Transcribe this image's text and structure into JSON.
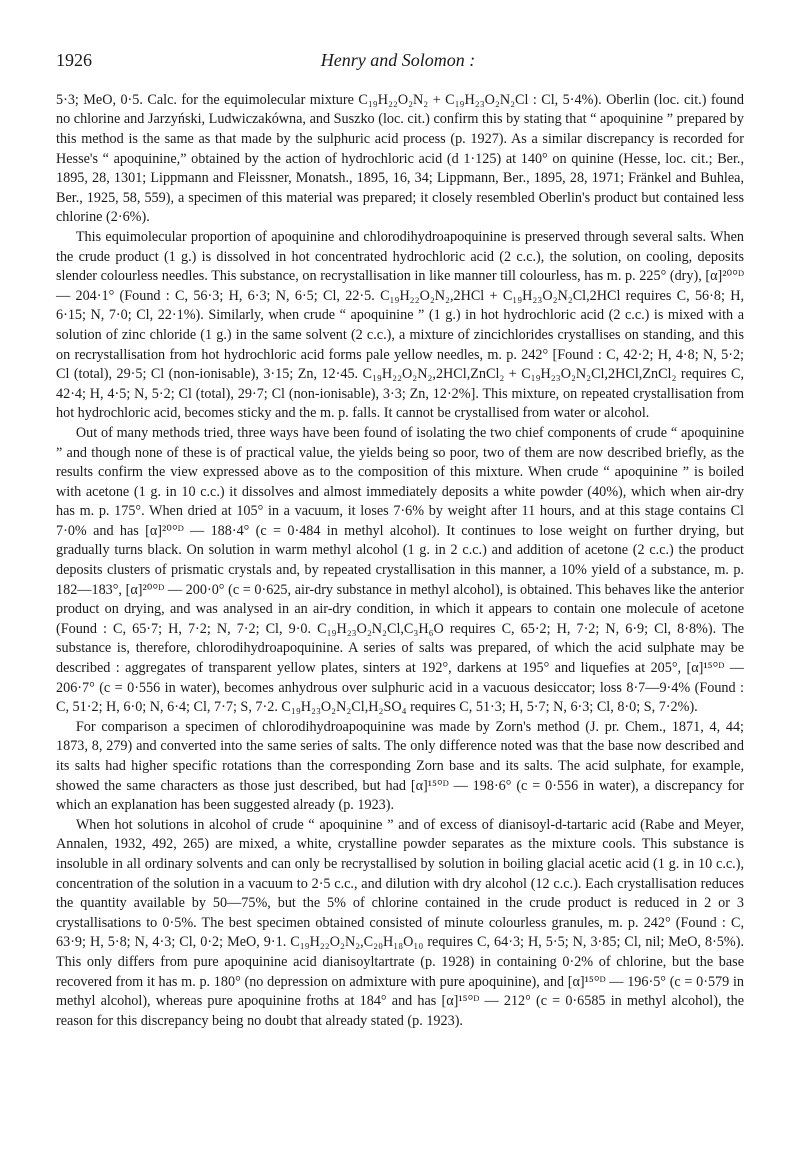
{
  "header": {
    "page_number": "1926",
    "running_title": "Henry and Solomon :"
  },
  "paragraphs": [
    {
      "indent": false,
      "text": "5·3;  MeO, 0·5.   Calc. for the equimolecular mixture C₁₉H₂₂O₂N₂ + C₁₉H₂₃O₂N₂Cl :  Cl, 5·4%). Oberlin (loc. cit.) found no chlorine and Jarzyński, Ludwiczakówna, and Suszko (loc. cit.) confirm this by stating that “ apoquinine ” prepared by this method is the same as that made by the sulphuric acid process (p. 1927).  As a similar discrepancy is recorded for Hesse's “ apoquinine,” obtained by the action of hydrochloric acid (d 1·125) at 140° on quinine (Hesse, loc. cit.; Ber., 1895, 28, 1301; Lippmann and Fleissner, Monatsh., 1895, 16, 34; Lippmann, Ber., 1895, 28, 1971; Fränkel and Buhlea, Ber., 1925, 58, 559), a specimen of this material was prepared; it closely resembled Oberlin's product but contained less chlorine (2·6%)."
    },
    {
      "indent": true,
      "text": "This equimolecular proportion of apoquinine and chlorodihydroapoquinine is preserved through several salts.  When the crude product (1 g.) is dissolved in hot concentrated hydrochloric acid (2 c.c.), the solution, on cooling, deposits slender colourless needles.  This substance, on recrystallisation in like manner till colourless, has m. p. 225° (dry), [α]²⁰°ᴰ — 204·1° (Found : C, 56·3;  H, 6·3;  N, 6·5;  Cl, 22·5.   C₁₉H₂₂O₂N₂,2HCl + C₁₉H₂₃O₂N₂Cl,2HCl requires C, 56·8; H, 6·15; N, 7·0; Cl, 22·1%).  Similarly, when crude “ apoquinine ” (1 g.) in hot hydrochloric acid (2 c.c.) is mixed with a solution of zinc chloride (1 g.) in the same solvent (2 c.c.), a mixture of zincichlorides crystallises on standing, and this on recrystallisation from hot hydrochloric acid forms pale yellow needles, m. p. 242° [Found : C, 42·2; H, 4·8; N, 5·2; Cl (total), 29·5; Cl (non-ionisable), 3·15; Zn, 12·45.  C₁₉H₂₂O₂N₂,2HCl,ZnCl₂ + C₁₉H₂₃O₂N₂Cl,2HCl,ZnCl₂ requires C, 42·4; H, 4·5; N, 5·2; Cl (total), 29·7; Cl (non-ionisable), 3·3; Zn, 12·2%].  This mixture, on repeated crystallisation from hot hydrochloric acid, becomes sticky and the m. p. falls.  It cannot be crystallised from water or alcohol."
    },
    {
      "indent": true,
      "text": "Out of many methods tried, three ways have been found of isolating the two chief components of crude “ apoquinine ” and though none of these is of practical value, the yields being so poor, two of them are now described briefly, as the results confirm the view expressed above as to the composition of this mixture.  When crude “ apoquinine ” is boiled with acetone (1 g. in 10 c.c.) it dissolves and almost immediately deposits a white powder (40%), which when air-dry has m. p. 175°.  When dried at 105° in a vacuum, it loses 7·6% by weight after 11 hours, and at this stage contains Cl 7·0% and has [α]²⁰°ᴰ — 188·4° (c = 0·484 in methyl alcohol).  It continues to lose weight on further drying, but gradually turns black.  On solution in warm methyl alcohol (1 g. in 2 c.c.) and addition of acetone (2 c.c.) the product deposits clusters of prismatic crystals and, by repeated crystallisation in this manner, a 10% yield of a substance, m. p. 182—183°, [α]²⁰°ᴰ — 200·0° (c = 0·625, air-dry substance in methyl alcohol), is obtained.  This behaves like the anterior product on drying, and was analysed in an air-dry condition, in which it appears to contain one molecule of acetone (Found : C, 65·7; H, 7·2; N, 7·2; Cl, 9·0. C₁₉H₂₃O₂N₂Cl,C₃H₆O requires C, 65·2; H, 7·2; N, 6·9; Cl, 8·8%).  The substance is, therefore, chlorodihydroapoquinine.  A series of salts was prepared, of which the acid sulphate may be described : aggregates of transparent yellow plates, sinters at 192°, darkens at 195° and liquefies at 205°, [α]¹⁵°ᴰ — 206·7° (c = 0·556 in water), becomes anhydrous over sulphuric acid in a vacuous desiccator; loss 8·7—9·4% (Found : C, 51·2; H, 6·0; N, 6·4; Cl, 7·7; S, 7·2. C₁₉H₂₃O₂N₂Cl,H₂SO₄ requires C, 51·3; H, 5·7; N, 6·3; Cl, 8·0; S, 7·2%)."
    },
    {
      "indent": true,
      "text": "For comparison a specimen of chlorodihydroapoquinine was made by Zorn's method (J. pr. Chem., 1871, 4, 44; 1873, 8, 279) and converted into the same series of salts.  The only difference noted was that the base now described and its salts had higher specific rotations than the corresponding Zorn base and its salts.  The acid sulphate, for example, showed the same characters as those just described, but had [α]¹⁵°ᴰ — 198·6° (c = 0·556 in water), a discrepancy for which an explanation has been suggested already (p. 1923)."
    },
    {
      "indent": true,
      "text": "When hot solutions in alcohol of crude “ apoquinine ” and of excess of dianisoyl-d-tartaric acid (Rabe and Meyer, Annalen, 1932, 492, 265) are mixed, a white, crystalline powder separates as the mixture cools.  This substance is insoluble in all ordinary solvents and can only be recrystallised by solution in boiling glacial acetic acid (1 g. in 10 c.c.), concentration of the solution in a vacuum to 2·5 c.c., and dilution with dry alcohol (12 c.c.).  Each crystallisation reduces the quantity available by 50—75%, but the 5% of chlorine contained in the crude product is reduced in 2 or 3 crystallisations to 0·5%.  The best specimen obtained consisted of minute colourless granules, m. p. 242° (Found : C, 63·9; H, 5·8; N, 4·3; Cl, 0·2; MeO, 9·1. C₁₉H₂₂O₂N₂,C₂₀H₁₈O₁₀ requires C, 64·3; H, 5·5; N, 3·85; Cl, nil; MeO, 8·5%).  This only differs from pure apoquinine acid dianisoyltartrate (p. 1928) in containing 0·2% of chlorine, but the base recovered from it has m. p. 180° (no depression on admixture with pure apoquinine), and [α]¹⁵°ᴰ — 196·5° (c = 0·579 in methyl alcohol), whereas pure apoquinine froths at 184° and has [α]¹⁵°ᴰ — 212° (c = 0·6585 in methyl alcohol), the reason for this discrepancy being no doubt that already stated (p. 1923)."
    }
  ]
}
